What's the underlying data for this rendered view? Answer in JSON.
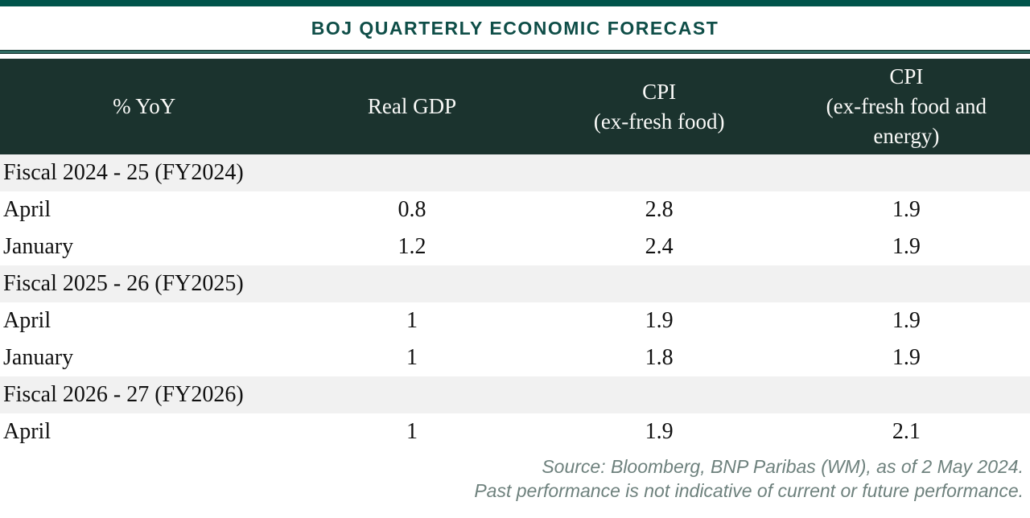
{
  "title": "BOJ QUARTERLY ECONOMIC FORECAST",
  "colors": {
    "accent_teal": "#00544B",
    "divider_teal": "#2F6B62",
    "header_bg": "#1B332E",
    "header_text": "#FAFAF8",
    "title_text": "#0F4E48",
    "section_row_bg": "#F1F1F1",
    "body_text": "#111111",
    "footer_text": "#6E817D"
  },
  "table": {
    "headers": {
      "col1": "% YoY",
      "col2": "Real GDP",
      "col3": "CPI\n(ex-fresh food)",
      "col4": "CPI\n(ex-fresh food and\nenergy)"
    },
    "rows": [
      {
        "type": "section",
        "label": "Fiscal 2024 - 25 (FY2024)"
      },
      {
        "type": "data",
        "label": "April",
        "values": [
          "0.8",
          "2.8",
          "1.9"
        ]
      },
      {
        "type": "data",
        "label": "January",
        "values": [
          "1.2",
          "2.4",
          "1.9"
        ]
      },
      {
        "type": "section",
        "label": "Fiscal 2025 - 26 (FY2025)"
      },
      {
        "type": "data",
        "label": "April",
        "values": [
          "1",
          "1.9",
          "1.9"
        ]
      },
      {
        "type": "data",
        "label": "January",
        "values": [
          "1",
          "1.8",
          "1.9"
        ]
      },
      {
        "type": "section",
        "label": "Fiscal 2026 - 27 (FY2026)"
      },
      {
        "type": "data",
        "label": "April",
        "values": [
          "1",
          "1.9",
          "2.1"
        ]
      }
    ]
  },
  "footer": {
    "source": "Source: Bloomberg, BNP Paribas (WM), as of 2 May 2024.",
    "disclaimer": "Past performance is not indicative of current or future performance."
  },
  "chart_data": {
    "type": "table",
    "title": "BOJ QUARTERLY ECONOMIC FORECAST",
    "unit": "% YoY",
    "columns": [
      "Real GDP",
      "CPI (ex-fresh food)",
      "CPI (ex-fresh food and energy)"
    ],
    "sections": [
      {
        "fiscal_year": "Fiscal 2024 - 25 (FY2024)",
        "rows": [
          {
            "forecast": "April",
            "real_gdp": 0.8,
            "cpi_ex_fresh_food": 2.8,
            "cpi_ex_fresh_food_and_energy": 1.9
          },
          {
            "forecast": "January",
            "real_gdp": 1.2,
            "cpi_ex_fresh_food": 2.4,
            "cpi_ex_fresh_food_and_energy": 1.9
          }
        ]
      },
      {
        "fiscal_year": "Fiscal 2025 - 26 (FY2025)",
        "rows": [
          {
            "forecast": "April",
            "real_gdp": 1,
            "cpi_ex_fresh_food": 1.9,
            "cpi_ex_fresh_food_and_energy": 1.9
          },
          {
            "forecast": "January",
            "real_gdp": 1,
            "cpi_ex_fresh_food": 1.8,
            "cpi_ex_fresh_food_and_energy": 1.9
          }
        ]
      },
      {
        "fiscal_year": "Fiscal 2026 - 27 (FY2026)",
        "rows": [
          {
            "forecast": "April",
            "real_gdp": 1,
            "cpi_ex_fresh_food": 1.9,
            "cpi_ex_fresh_food_and_energy": 2.1
          }
        ]
      }
    ]
  }
}
